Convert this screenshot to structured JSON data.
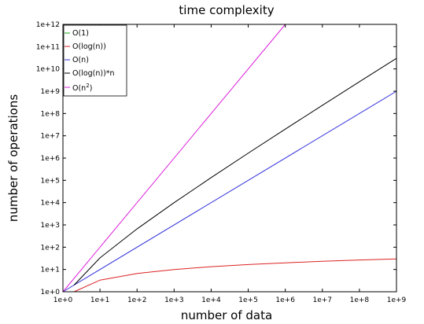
{
  "chart_data": {
    "type": "line",
    "title": "time complexity",
    "xlabel": "number of data",
    "ylabel": "number of operations",
    "xscale": "log",
    "yscale": "log",
    "xlim": [
      1,
      1000000000
    ],
    "ylim": [
      1,
      1000000000000
    ],
    "xticks": [
      "1e+0",
      "1e+1",
      "1e+2",
      "1e+3",
      "1e+4",
      "1e+5",
      "1e+6",
      "1e+7",
      "1e+8",
      "1e+9"
    ],
    "yticks": [
      "1e+0",
      "1e+1",
      "1e+2",
      "1e+3",
      "1e+4",
      "1e+5",
      "1e+6",
      "1e+7",
      "1e+8",
      "1e+9",
      "1e+10",
      "1e+11",
      "1e+12"
    ],
    "grid": false,
    "legend_position": "top-left",
    "series": [
      {
        "name": "O(1)",
        "color": "#22aa22",
        "x": [
          1,
          1000000000
        ],
        "y": [
          1,
          1
        ]
      },
      {
        "name": "O(log(n))",
        "color": "#dd2222",
        "x": [
          2,
          10,
          100,
          1000,
          10000,
          100000,
          1000000,
          10000000,
          100000000,
          1000000000
        ],
        "y": [
          1,
          3.32,
          6.64,
          9.97,
          13.3,
          16.6,
          19.9,
          23.3,
          26.6,
          29.9
        ]
      },
      {
        "name": "O(n)",
        "color": "#3333dd",
        "x": [
          1,
          1000000000
        ],
        "y": [
          1,
          1000000000
        ]
      },
      {
        "name": "O(log(n))*n",
        "color": "#000000",
        "x": [
          2,
          10,
          100,
          1000,
          10000,
          100000,
          1000000,
          10000000,
          100000000,
          1000000000
        ],
        "y": [
          2,
          33.2,
          664,
          9966,
          132900,
          1661000,
          19930000,
          232500000,
          2658000000,
          29900000000
        ]
      },
      {
        "name": "O(n^2)",
        "color": "#dd22dd",
        "x": [
          1,
          1000000
        ],
        "y": [
          1,
          1000000000000
        ]
      }
    ],
    "legend_labels": {
      "o1": "O(1)",
      "ologn": "O(log(n))",
      "on": "O(n)",
      "onlogn": "O(log(n))*n",
      "on2_base": "O(n",
      "on2_exp": "2",
      "on2_close": ")"
    }
  }
}
